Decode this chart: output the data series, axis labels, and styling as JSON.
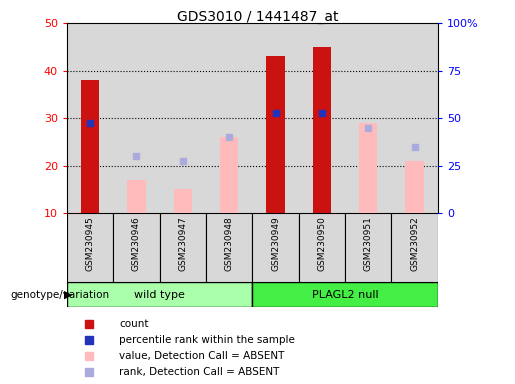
{
  "title": "GDS3010 / 1441487_at",
  "samples": [
    "GSM230945",
    "GSM230946",
    "GSM230947",
    "GSM230948",
    "GSM230949",
    "GSM230950",
    "GSM230951",
    "GSM230952"
  ],
  "group_labels": [
    "wild type",
    "PLAGL2 null"
  ],
  "count_values": [
    38,
    null,
    null,
    null,
    43,
    45,
    null,
    null
  ],
  "percentile_rank_values": [
    29,
    null,
    null,
    null,
    31,
    31,
    null,
    null
  ],
  "absent_value_values": [
    null,
    17,
    15,
    26,
    null,
    null,
    29,
    21
  ],
  "absent_rank_values": [
    null,
    22,
    21,
    26,
    null,
    null,
    28,
    24
  ],
  "left_ylim": [
    10,
    50
  ],
  "left_yticks": [
    10,
    20,
    30,
    40,
    50
  ],
  "right_ylim": [
    0,
    100
  ],
  "right_yticks": [
    0,
    25,
    50,
    75,
    100
  ],
  "right_yticklabels": [
    "0",
    "25",
    "50",
    "75",
    "100%"
  ],
  "bar_color_count": "#cc1111",
  "bar_color_absent_value": "#ffbbbb",
  "dot_color_percentile": "#2233bb",
  "dot_color_absent_rank": "#aaaadd",
  "group_color_wildtype": "#aaffaa",
  "group_color_plagl2": "#44ee44",
  "cell_bg_color": "#d8d8d8",
  "bar_width": 0.4
}
